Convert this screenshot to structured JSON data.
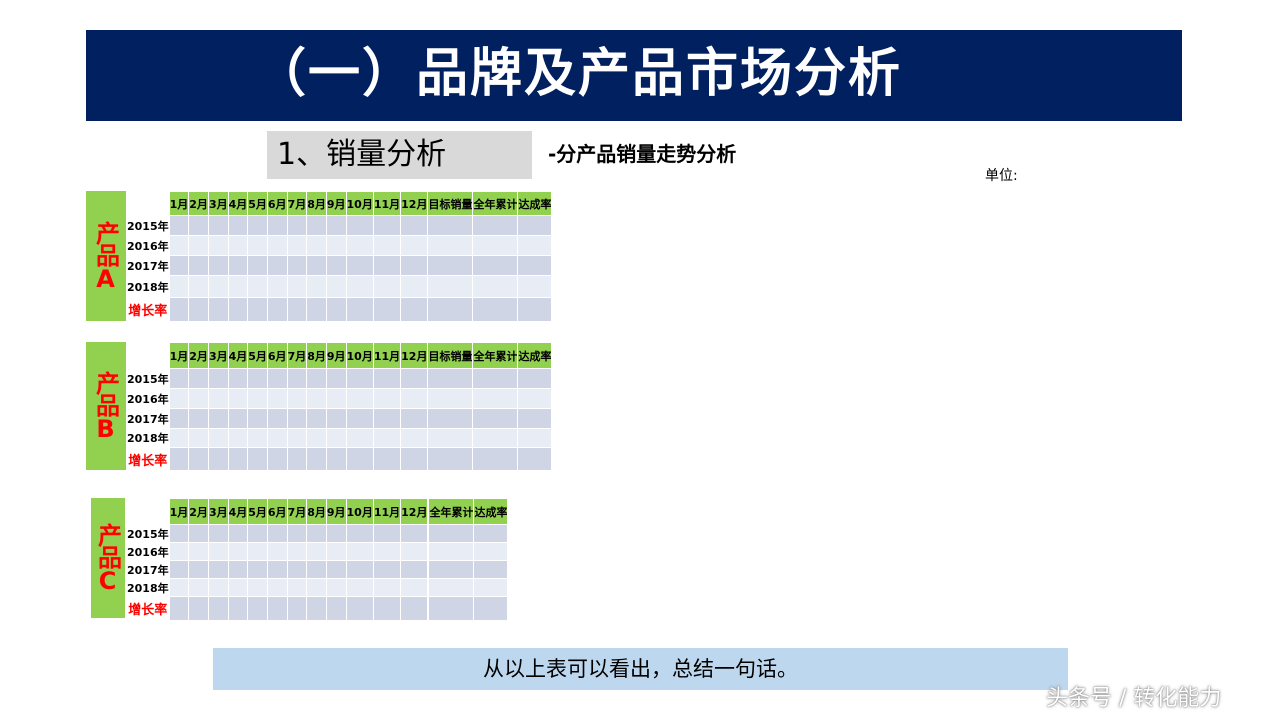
{
  "banner_title": "（一）品牌及产品市场分析",
  "section_title": "1、销量分析",
  "subtitle": "-分产品销量走势分析",
  "unit_label": "单位:",
  "tables": [
    {
      "product": "产品A",
      "headers": [
        "1月",
        "2月",
        "3月",
        "4月",
        "5月",
        "6月",
        "7月",
        "8月",
        "9月",
        "10月",
        "11月",
        "12月",
        "目标销量",
        "全年累计",
        "达成率"
      ],
      "rows": [
        "2015年",
        "2016年",
        "2017年",
        "2018年"
      ],
      "growth_label": "增长率"
    },
    {
      "product": "产品B",
      "headers": [
        "1月",
        "2月",
        "3月",
        "4月",
        "5月",
        "6月",
        "7月",
        "8月",
        "9月",
        "10月",
        "11月",
        "12月",
        "目标销量",
        "全年累计",
        "达成率"
      ],
      "rows": [
        "2015年",
        "2016年",
        "2017年",
        "2018年"
      ],
      "growth_label": "增长率"
    },
    {
      "product": "产品C",
      "headers": [
        "1月",
        "2月",
        "3月",
        "4月",
        "5月",
        "6月",
        "7月",
        "8月",
        "9月",
        "10月",
        "11月",
        "12月",
        "",
        "全年累计",
        "达成率"
      ],
      "rows": [
        "2015年",
        "2016年",
        "2017年",
        "2018年"
      ],
      "growth_label": "增长率"
    }
  ],
  "conclusion": "从以上表可以看出，总结一句话。",
  "watermark": "头条号 / 转化能力",
  "colors": {
    "banner": "#002060",
    "header_green": "#92d050",
    "row_dark": "#cfd5e4",
    "row_light": "#e8ecf4",
    "conclusion_bg": "#bdd7ee",
    "red_text": "#ff0000"
  }
}
